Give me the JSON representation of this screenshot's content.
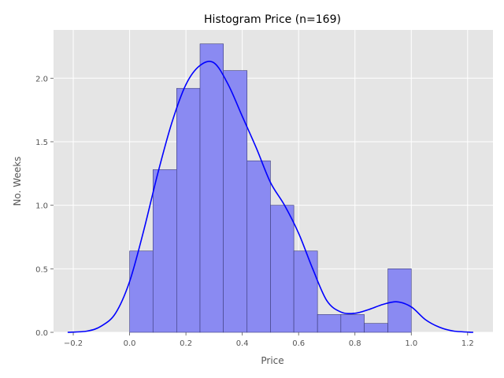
{
  "chart_data": {
    "type": "bar",
    "title": "Histogram Price (n=169)",
    "xlabel": "Price",
    "ylabel": "No. Weeks",
    "xlim": [
      -0.27,
      1.29
    ],
    "ylim": [
      0.0,
      2.38
    ],
    "x_ticks": [
      {
        "value": -0.2,
        "label": "−0.2"
      },
      {
        "value": 0.0,
        "label": "0.0"
      },
      {
        "value": 0.2,
        "label": "0.2"
      },
      {
        "value": 0.4,
        "label": "0.4"
      },
      {
        "value": 0.6,
        "label": "0.6"
      },
      {
        "value": 0.8,
        "label": "0.8"
      },
      {
        "value": 1.0,
        "label": "1.0"
      },
      {
        "value": 1.2,
        "label": "1.2"
      }
    ],
    "y_ticks": [
      {
        "value": 0.0,
        "label": "0.0"
      },
      {
        "value": 0.5,
        "label": "0.5"
      },
      {
        "value": 1.0,
        "label": "1.0"
      },
      {
        "value": 1.5,
        "label": "1.5"
      },
      {
        "value": 2.0,
        "label": "2.0"
      }
    ],
    "grid": true,
    "bins": [
      {
        "x0": 0.0,
        "x1": 0.083,
        "value": 0.64
      },
      {
        "x0": 0.083,
        "x1": 0.167,
        "value": 1.28
      },
      {
        "x0": 0.167,
        "x1": 0.25,
        "value": 1.92
      },
      {
        "x0": 0.25,
        "x1": 0.333,
        "value": 2.27
      },
      {
        "x0": 0.333,
        "x1": 0.417,
        "value": 2.06
      },
      {
        "x0": 0.417,
        "x1": 0.5,
        "value": 1.35
      },
      {
        "x0": 0.5,
        "x1": 0.583,
        "value": 1.0
      },
      {
        "x0": 0.583,
        "x1": 0.667,
        "value": 0.64
      },
      {
        "x0": 0.667,
        "x1": 0.75,
        "value": 0.14
      },
      {
        "x0": 0.75,
        "x1": 0.833,
        "value": 0.14
      },
      {
        "x0": 0.833,
        "x1": 0.917,
        "value": 0.07
      },
      {
        "x0": 0.917,
        "x1": 1.0,
        "value": 0.5
      }
    ],
    "kde": {
      "x": [
        -0.22,
        -0.15,
        -0.1,
        -0.05,
        0.0,
        0.05,
        0.1,
        0.15,
        0.2,
        0.25,
        0.3,
        0.35,
        0.4,
        0.45,
        0.5,
        0.55,
        0.6,
        0.65,
        0.7,
        0.75,
        0.8,
        0.85,
        0.9,
        0.95,
        1.0,
        1.05,
        1.1,
        1.15,
        1.22
      ],
      "y": [
        0.0,
        0.01,
        0.05,
        0.15,
        0.4,
        0.8,
        1.25,
        1.65,
        1.95,
        2.1,
        2.12,
        1.95,
        1.7,
        1.45,
        1.18,
        1.0,
        0.78,
        0.5,
        0.25,
        0.16,
        0.15,
        0.18,
        0.22,
        0.24,
        0.2,
        0.1,
        0.04,
        0.01,
        0.0
      ]
    },
    "colors": {
      "bar_fill": "#8a8af2",
      "bar_edge": "#3a3a78",
      "kde_line": "#0000ff",
      "plot_bg": "#e5e5e5",
      "grid": "#ffffff"
    }
  }
}
